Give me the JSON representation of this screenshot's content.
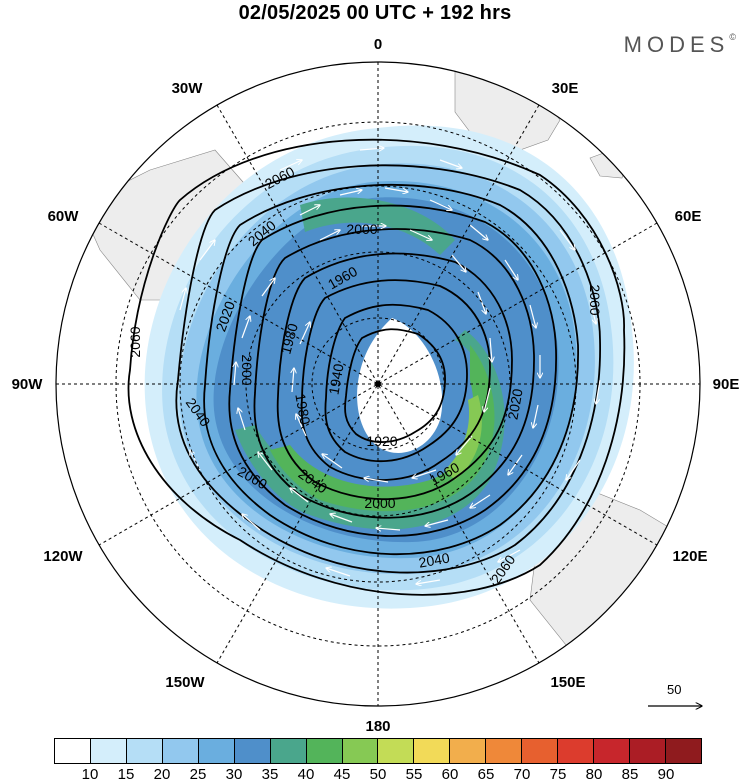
{
  "header": {
    "title": "02/05/2025  00 UTC  + 192 hrs"
  },
  "brand": {
    "name": "MODES",
    "mark": "©"
  },
  "map": {
    "projection": "south polar stereographic",
    "longitude_labels": [
      "0",
      "30E",
      "60E",
      "90E",
      "120E",
      "150E",
      "180",
      "150W",
      "120W",
      "90W",
      "60W",
      "30W"
    ],
    "contour_labels": [
      "2060",
      "2040",
      "2000",
      "1960",
      "2020",
      "1980",
      "2000",
      "2060",
      "1940",
      "1920",
      "2040",
      "2060",
      "2040",
      "2060",
      "2020",
      "1960",
      "2000",
      "2040",
      "1980",
      "2060"
    ],
    "colors": {
      "land": "#ededed",
      "contour": "#000000",
      "arrows": "#ffffff",
      "grid": "#000000"
    }
  },
  "reference_vector": {
    "value": "50"
  },
  "colorbar": {
    "labels": [
      "10",
      "15",
      "20",
      "25",
      "30",
      "35",
      "40",
      "45",
      "50",
      "55",
      "60",
      "65",
      "70",
      "75",
      "80",
      "85",
      "90"
    ],
    "colors": [
      "#ffffff",
      "#d4eefb",
      "#b5def6",
      "#92c8ee",
      "#6aaedf",
      "#4f8fca",
      "#4aa68c",
      "#53b45a",
      "#86c954",
      "#c3dc56",
      "#f2da58",
      "#f2ae4c",
      "#ef8839",
      "#e7602f",
      "#dc3c2d",
      "#c7262c",
      "#ab1d25",
      "#8f1b1e"
    ]
  }
}
